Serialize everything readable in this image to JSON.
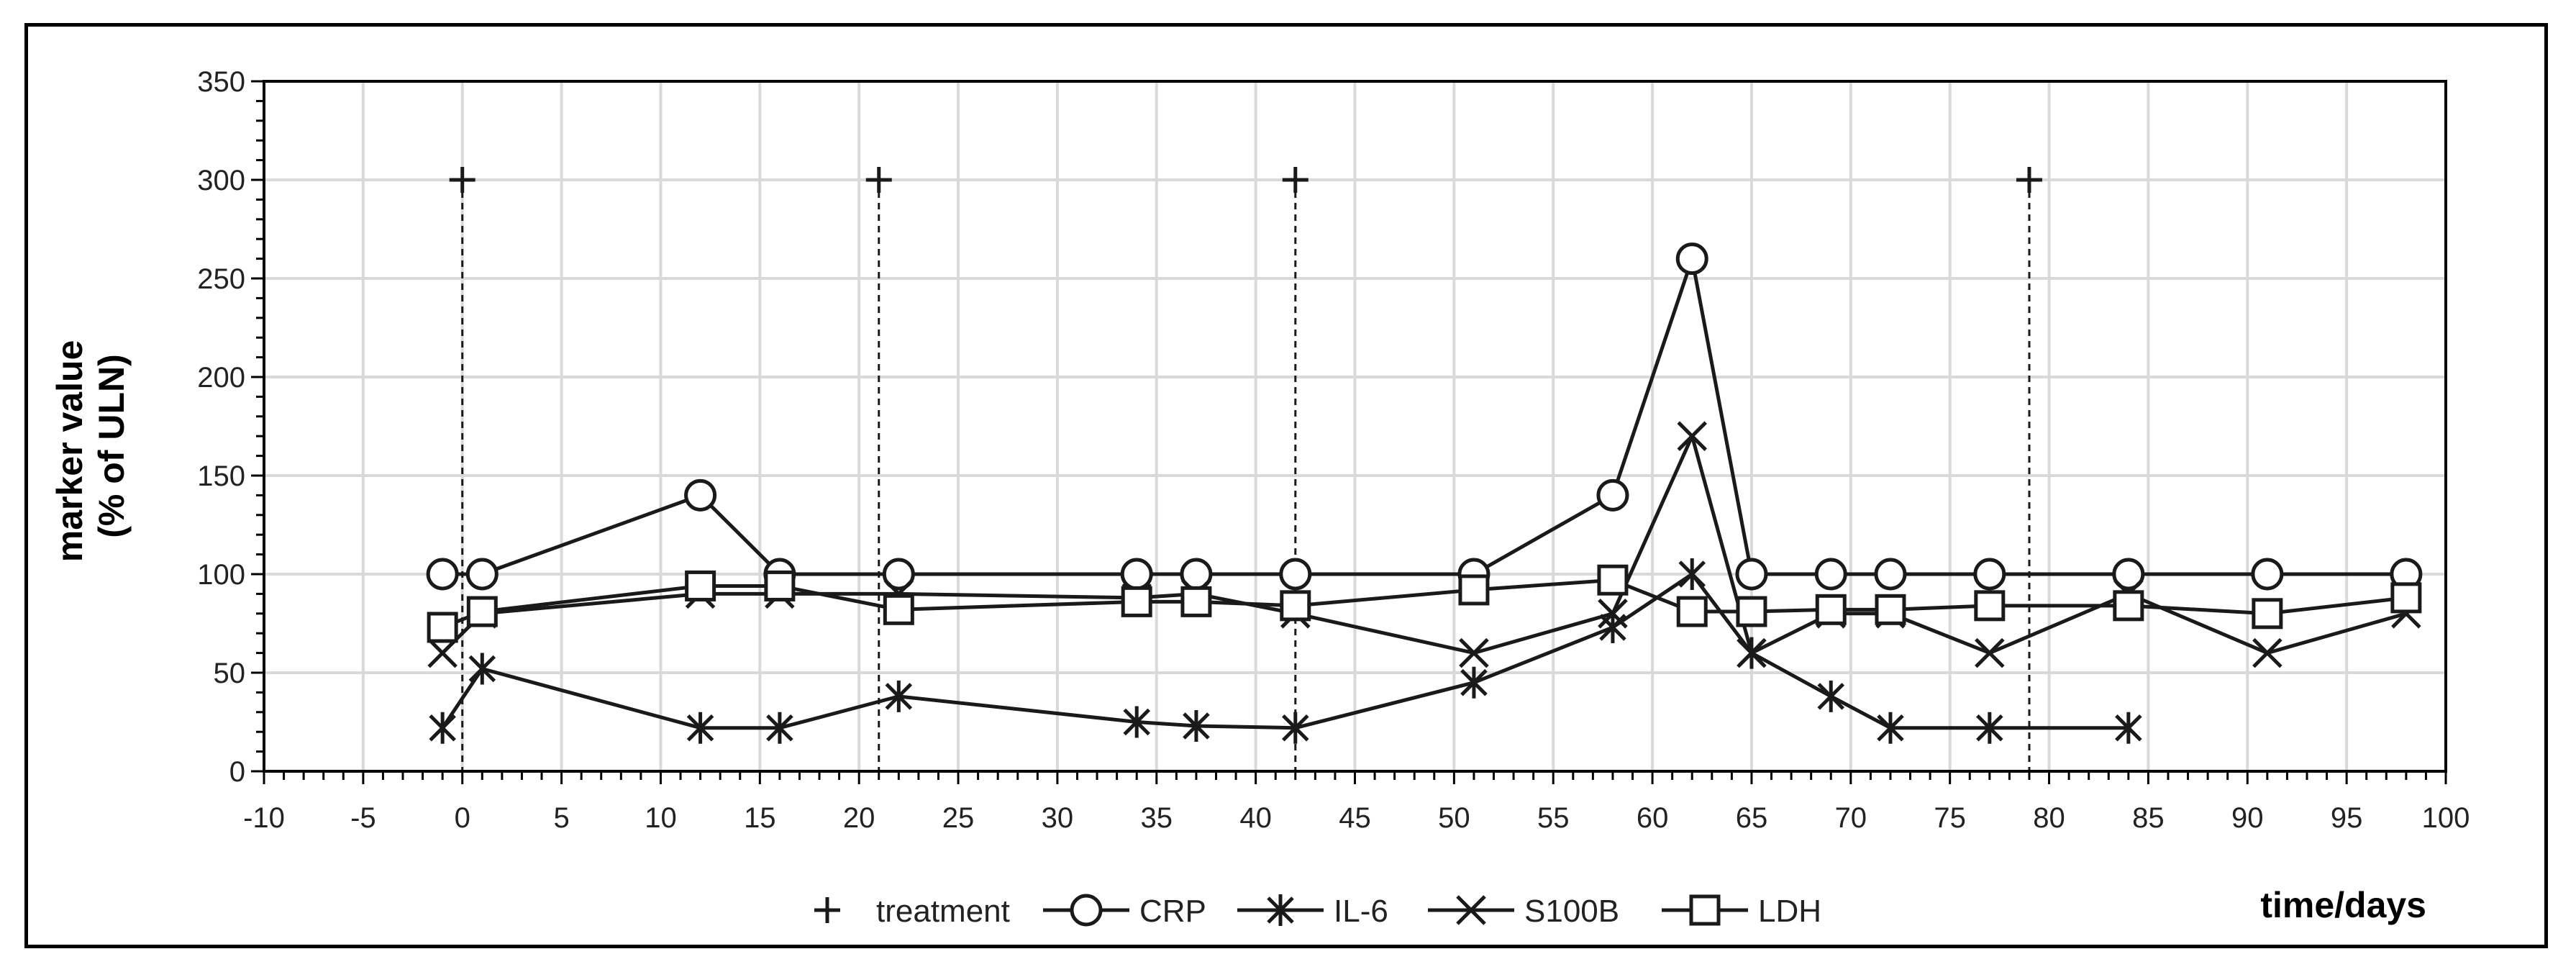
{
  "chart_data": {
    "type": "line",
    "xlabel": "time/days",
    "ylabel": [
      "marker value",
      "(% of ULN)"
    ],
    "xlim": [
      -10,
      100
    ],
    "ylim": [
      0,
      350
    ],
    "x_ticks": [
      -10,
      -5,
      0,
      5,
      10,
      15,
      20,
      25,
      30,
      35,
      40,
      45,
      50,
      55,
      60,
      65,
      70,
      75,
      80,
      85,
      90,
      95,
      100
    ],
    "y_ticks": [
      0,
      50,
      100,
      150,
      200,
      250,
      300,
      350
    ],
    "grid": true,
    "legend_position": "bottom",
    "colors": {
      "line": "#1a1a1a",
      "grid": "#d9d9d9",
      "axis": "#000000"
    },
    "series": [
      {
        "name": "treatment",
        "marker": "plus",
        "line": "none",
        "x": [
          0,
          21,
          42,
          79
        ],
        "y": [
          300,
          300,
          300,
          300
        ]
      },
      {
        "name": "CRP",
        "marker": "circle",
        "x": [
          -1,
          1,
          12,
          16,
          22,
          34,
          37,
          42,
          51,
          58,
          62,
          65,
          69,
          72,
          77,
          84,
          91,
          98
        ],
        "y": [
          100,
          100,
          140,
          100,
          100,
          100,
          100,
          100,
          100,
          140,
          260,
          100,
          100,
          100,
          100,
          100,
          100,
          100
        ]
      },
      {
        "name": "IL-6",
        "marker": "asterisk",
        "x": [
          -1,
          1,
          12,
          16,
          22,
          34,
          37,
          42,
          51,
          58,
          62,
          65,
          69,
          72,
          77,
          84
        ],
        "y": [
          22,
          52,
          22,
          22,
          38,
          25,
          23,
          22,
          45,
          73,
          100,
          60,
          38,
          22,
          22,
          22
        ]
      },
      {
        "name": "S100B",
        "marker": "x",
        "x": [
          -1,
          1,
          12,
          16,
          22,
          34,
          37,
          42,
          51,
          58,
          62,
          65,
          69,
          72,
          77,
          84,
          91,
          98
        ],
        "y": [
          60,
          80,
          90,
          90,
          90,
          88,
          90,
          80,
          60,
          80,
          170,
          60,
          80,
          80,
          60,
          90,
          60,
          80
        ]
      },
      {
        "name": "LDH",
        "marker": "square",
        "x": [
          -1,
          1,
          12,
          16,
          22,
          34,
          37,
          42,
          51,
          58,
          62,
          65,
          69,
          72,
          77,
          84,
          91,
          98
        ],
        "y": [
          73,
          81,
          94,
          94,
          82,
          86,
          86,
          84,
          92,
          97,
          81,
          81,
          82,
          82,
          84,
          84,
          80,
          88
        ]
      }
    ]
  }
}
